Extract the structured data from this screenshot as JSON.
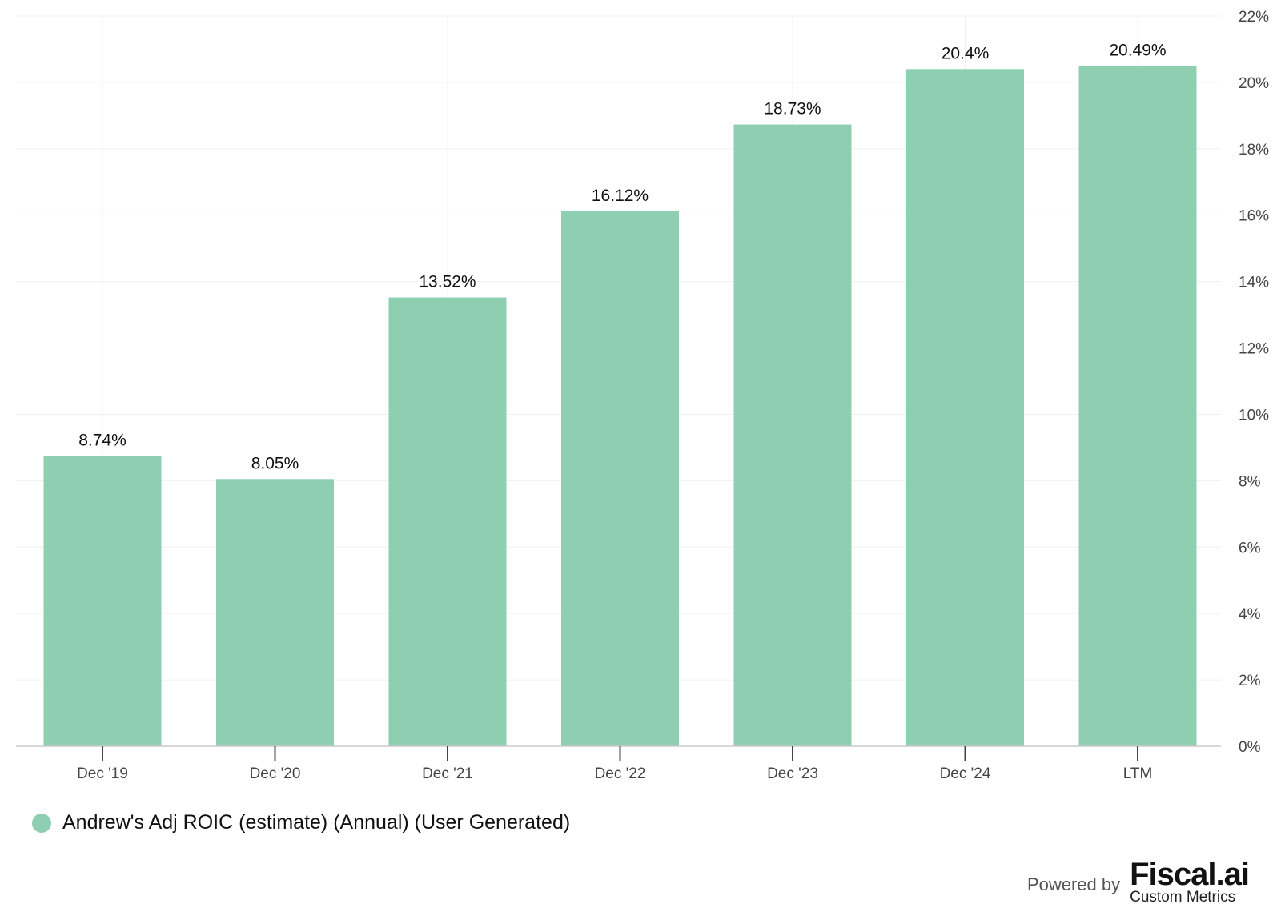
{
  "chart_data": {
    "type": "bar",
    "categories": [
      "Dec '19",
      "Dec '20",
      "Dec '21",
      "Dec '22",
      "Dec '23",
      "Dec '24",
      "LTM"
    ],
    "series": [
      {
        "name": "Andrew's Adj ROIC (estimate) (Annual) (User Generated)",
        "values": [
          8.74,
          8.05,
          13.52,
          16.12,
          18.73,
          20.4,
          20.49
        ],
        "labels": [
          "8.74%",
          "8.05%",
          "13.52%",
          "16.12%",
          "18.73%",
          "20.4%",
          "20.49%"
        ],
        "color": "#8dcfb0"
      }
    ],
    "y_ticks": [
      "0%",
      "2%",
      "4%",
      "6%",
      "8%",
      "10%",
      "12%",
      "14%",
      "16%",
      "18%",
      "20%",
      "22%"
    ],
    "ylim": [
      0,
      22
    ],
    "y_axis_side": "right",
    "grid": true,
    "legend": "bottom-left"
  },
  "footer": {
    "powered_by": "Powered by",
    "brand": "Fiscal.ai",
    "brand_sub": "Custom Metrics"
  }
}
